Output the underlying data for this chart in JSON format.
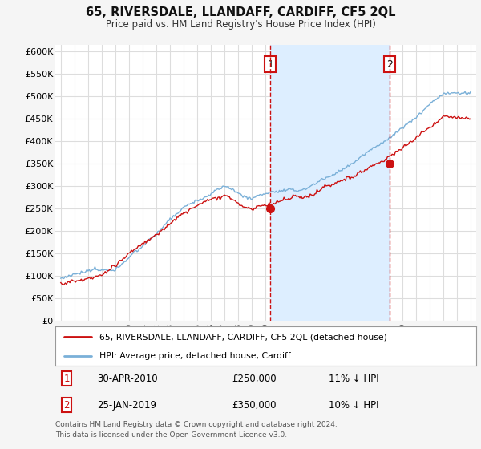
{
  "title": "65, RIVERSDALE, LLANDAFF, CARDIFF, CF5 2QL",
  "subtitle": "Price paid vs. HM Land Registry's House Price Index (HPI)",
  "ylabel_ticks": [
    "£0",
    "£50K",
    "£100K",
    "£150K",
    "£200K",
    "£250K",
    "£300K",
    "£350K",
    "£400K",
    "£450K",
    "£500K",
    "£550K",
    "£600K"
  ],
  "ytick_values": [
    0,
    50000,
    100000,
    150000,
    200000,
    250000,
    300000,
    350000,
    400000,
    450000,
    500000,
    550000,
    600000
  ],
  "ylim": [
    0,
    615000
  ],
  "background_color": "#f5f5f5",
  "plot_bg_color": "#ffffff",
  "grid_color": "#dddddd",
  "hpi_color": "#7ab0d8",
  "price_color": "#cc1111",
  "shade_color": "#ddeeff",
  "sale1_x": 2010.33,
  "sale1_price": 250000,
  "sale1_hpi_diff": "11% ↓ HPI",
  "sale1_date": "30-APR-2010",
  "sale2_x": 2019.08,
  "sale2_price": 350000,
  "sale2_hpi_diff": "10% ↓ HPI",
  "sale2_date": "25-JAN-2019",
  "legend_line1": "65, RIVERSDALE, LLANDAFF, CARDIFF, CF5 2QL (detached house)",
  "legend_line2": "HPI: Average price, detached house, Cardiff",
  "footnote1": "Contains HM Land Registry data © Crown copyright and database right 2024.",
  "footnote2": "This data is licensed under the Open Government Licence v3.0."
}
